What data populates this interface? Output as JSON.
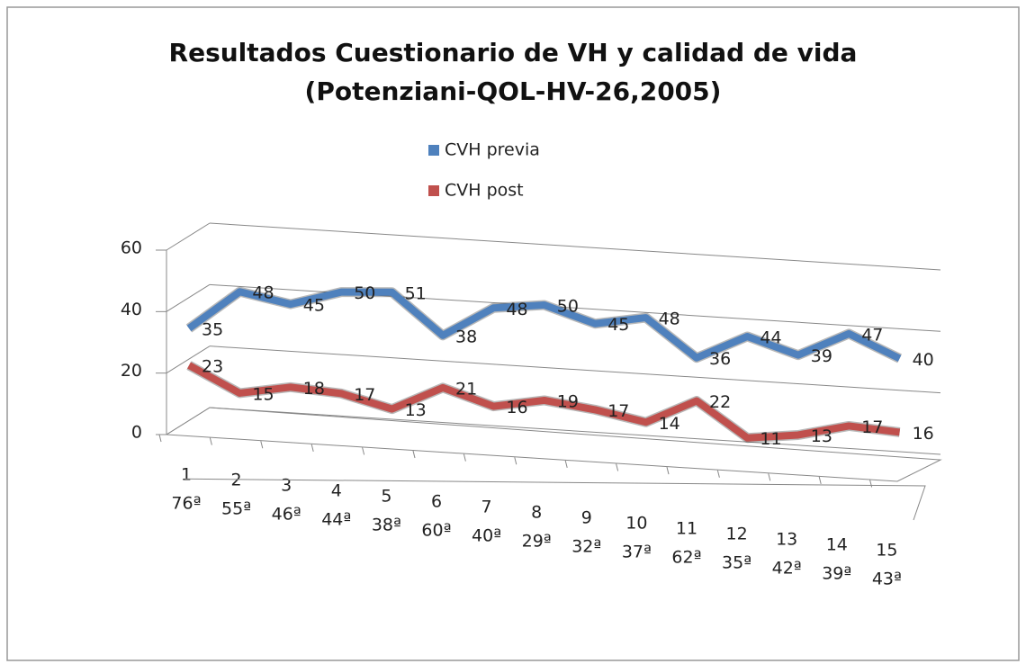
{
  "chart_data": {
    "type": "line3d",
    "title": [
      "Resultados Cuestionario de VH y calidad de vida",
      "(Potenziani-QOL-HV-26,2005)"
    ],
    "categories": [
      [
        "1",
        "76ª"
      ],
      [
        "2",
        "55ª"
      ],
      [
        "3",
        "46ª"
      ],
      [
        "4",
        "44ª"
      ],
      [
        "5",
        "38ª"
      ],
      [
        "6",
        "60ª"
      ],
      [
        "7",
        "40ª"
      ],
      [
        "8",
        "29ª"
      ],
      [
        "9",
        "32ª"
      ],
      [
        "10",
        "37ª"
      ],
      [
        "11",
        "62ª"
      ],
      [
        "12",
        "35ª"
      ],
      [
        "13",
        "42ª"
      ],
      [
        "14",
        "39ª"
      ],
      [
        "15",
        "43ª"
      ]
    ],
    "series": [
      {
        "name": "CVH previa",
        "color": "#4f81bd",
        "values": [
          35,
          48,
          45,
          50,
          51,
          38,
          48,
          50,
          45,
          48,
          36,
          44,
          39,
          47,
          40
        ]
      },
      {
        "name": "CVH post",
        "color": "#c0504d",
        "values": [
          23,
          15,
          18,
          17,
          13,
          21,
          16,
          19,
          17,
          14,
          22,
          11,
          13,
          17,
          16
        ]
      }
    ],
    "ylim": [
      0,
      60
    ],
    "yticks": [
      0,
      20,
      40,
      60
    ],
    "grid": true
  }
}
